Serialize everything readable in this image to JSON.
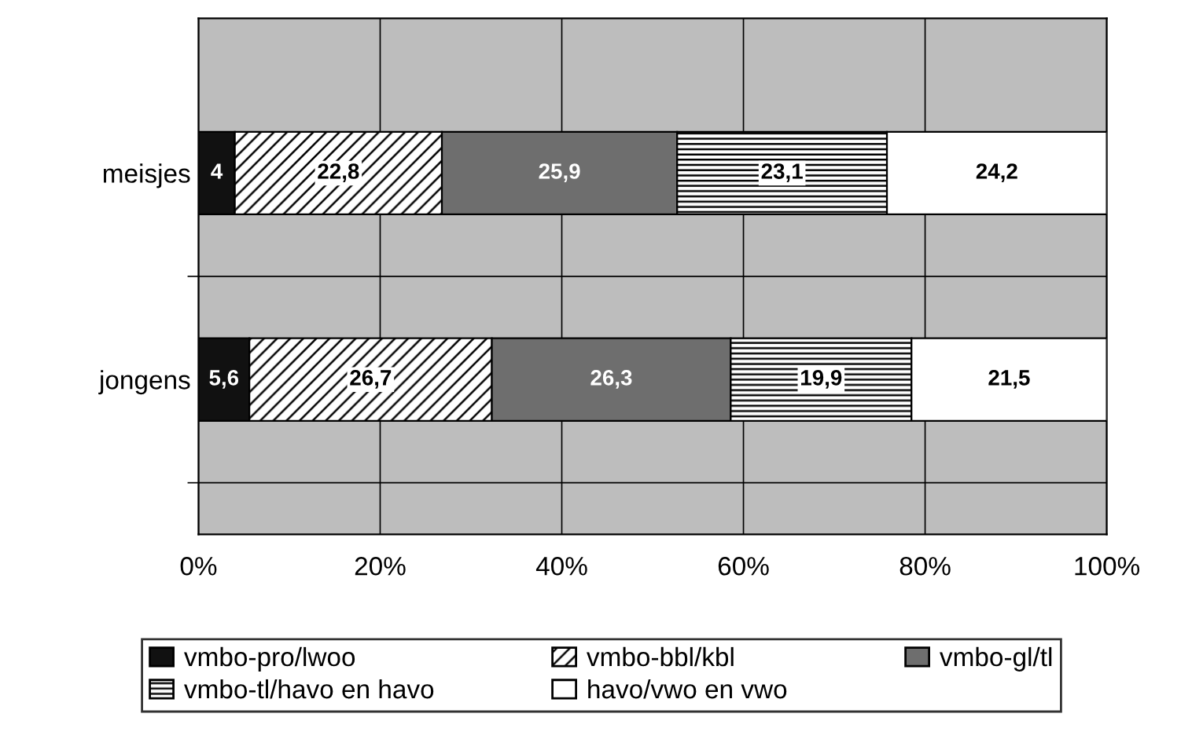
{
  "chart_data": {
    "type": "bar",
    "orientation": "horizontal",
    "stacked": true,
    "categories": [
      "meisjes",
      "jongens"
    ],
    "series": [
      {
        "name": "vmbo-pro/lwoo",
        "color": "#111111",
        "values": [
          4,
          5.6
        ],
        "value_labels": [
          "4",
          "5,6"
        ]
      },
      {
        "name": "vmbo-bbl/kbl",
        "color": "#000000",
        "values": [
          22.8,
          26.7
        ],
        "value_labels": [
          "22,8",
          "26,7"
        ]
      },
      {
        "name": "vmbo-gl/tl",
        "color": "#6e6e6e",
        "values": [
          25.9,
          26.3
        ],
        "value_labels": [
          "25,9",
          "26,3"
        ]
      },
      {
        "name": "vmbo-tl/havo en havo",
        "color": "#000000",
        "values": [
          23.1,
          19.9
        ],
        "value_labels": [
          "23,1",
          "19,9"
        ]
      },
      {
        "name": "havo/vwo en vwo",
        "color": "#ffffff",
        "values": [
          24.2,
          21.5
        ],
        "value_labels": [
          "24,2",
          "21,5"
        ]
      }
    ],
    "xlim": [
      0,
      100
    ],
    "xticks": [
      {
        "value": 0,
        "label": "0%"
      },
      {
        "value": 20,
        "label": "20%"
      },
      {
        "value": 40,
        "label": "40%"
      },
      {
        "value": 60,
        "label": "60%"
      },
      {
        "value": 80,
        "label": "80%"
      },
      {
        "value": 100,
        "label": "100%"
      }
    ],
    "grid": true,
    "legend": "bottom"
  }
}
